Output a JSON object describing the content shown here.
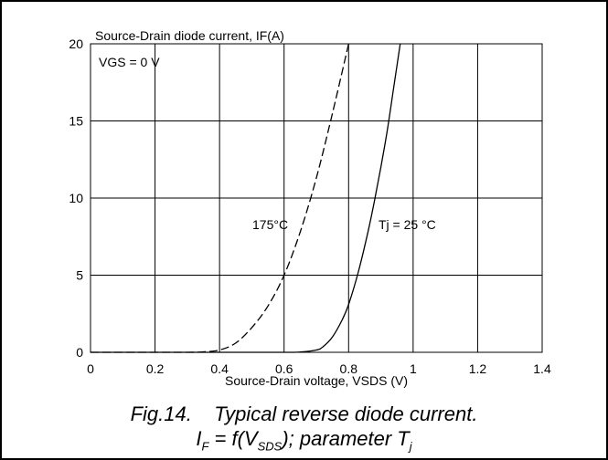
{
  "chart_data": {
    "type": "line",
    "ylabel": "Source-Drain diode current, IF(A)",
    "xlabel": "Source-Drain voltage, VSDS (V)",
    "xlim": [
      0,
      1.4
    ],
    "ylim": [
      0,
      20
    ],
    "xticks": [
      "0",
      "0.2",
      "0.4",
      "0.6",
      "0.8",
      "1",
      "1.2",
      "1.4"
    ],
    "yticks": [
      "0",
      "5",
      "10",
      "15",
      "20"
    ],
    "grid": true,
    "annotations": [
      "VGS = 0 V",
      "175°C",
      "Tj = 25 °C"
    ],
    "series": [
      {
        "name": "175°C",
        "style": "dashed",
        "color": "#000000",
        "x": [
          0.0,
          0.1,
          0.2,
          0.3,
          0.35,
          0.4,
          0.45,
          0.5,
          0.55,
          0.6,
          0.65,
          0.7,
          0.75,
          0.8
        ],
        "y": [
          0.0,
          0.0,
          0.0,
          0.0,
          0.03,
          0.15,
          0.6,
          1.6,
          3.0,
          5.0,
          7.8,
          11.3,
          15.5,
          20.0
        ]
      },
      {
        "name": "Tj = 25 °C",
        "style": "solid",
        "color": "#000000",
        "x": [
          0.0,
          0.2,
          0.4,
          0.6,
          0.65,
          0.7,
          0.72,
          0.75,
          0.78,
          0.8,
          0.83,
          0.86,
          0.88,
          0.9,
          0.92,
          0.94,
          0.96
        ],
        "y": [
          0.0,
          0.0,
          0.0,
          0.0,
          0.02,
          0.15,
          0.35,
          1.0,
          2.1,
          3.1,
          5.2,
          7.8,
          9.8,
          12.0,
          14.4,
          17.2,
          20.0
        ]
      }
    ]
  },
  "caption": {
    "line1": "Fig.14.    Typical reverse diode current.",
    "line2_parts": [
      "I",
      "F",
      " = f(V",
      "SDS",
      "); parameter T",
      "j"
    ]
  }
}
